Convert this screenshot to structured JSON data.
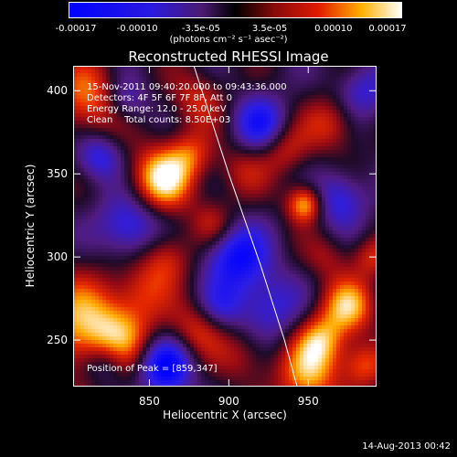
{
  "chart_data": {
    "type": "heatmap",
    "title": "Reconstructed RHESSI Image",
    "colorbar": {
      "min": -0.00017,
      "max": 0.00017,
      "tick_values": [
        -0.00017,
        -0.0001,
        -3.5e-05,
        3.5e-05,
        0.0001,
        0.00017
      ],
      "tick_labels": [
        "-0.00017",
        "-0.00010",
        "-3.5e-05",
        "3.5e-05",
        "0.00010",
        "0.00017"
      ],
      "unit_label": "(photons cm⁻² s⁻¹ asec⁻²)"
    },
    "xlabel": "Heliocentric X (arcsec)",
    "ylabel": "Heliocentric Y (arcsec)",
    "xlim": [
      802,
      993
    ],
    "ylim": [
      222,
      415
    ],
    "xticks": [
      850,
      900,
      950
    ],
    "yticks": [
      250,
      300,
      350,
      400
    ],
    "info_lines": [
      "15-Nov-2011 09:40:20.000 to 09:43:36.000",
      "Detectors: 4F 5F 6F 7F 8F, Att 0",
      "Energy Range: 12.0 - 25.0 keV",
      "Clean    Total counts: 8.50E+03"
    ],
    "peak_label": "Position of Peak = [859,347]",
    "peak": [
      859,
      347
    ],
    "limb_curve": [
      [
        878,
        415
      ],
      [
        900,
        350
      ],
      [
        920,
        295
      ],
      [
        935,
        250
      ],
      [
        943,
        222
      ]
    ],
    "blobs": [
      [
        858,
        347,
        14,
        1.0
      ],
      [
        812,
        395,
        16,
        0.7
      ],
      [
        808,
        258,
        22,
        0.75
      ],
      [
        832,
        250,
        16,
        0.55
      ],
      [
        880,
        256,
        12,
        0.5
      ],
      [
        838,
        318,
        14,
        -0.7
      ],
      [
        860,
        300,
        12,
        0.55
      ],
      [
        890,
        320,
        10,
        0.4
      ],
      [
        908,
        352,
        12,
        0.35
      ],
      [
        935,
        365,
        11,
        0.45
      ],
      [
        948,
        332,
        8,
        0.9
      ],
      [
        965,
        380,
        12,
        0.5
      ],
      [
        975,
        270,
        12,
        0.8
      ],
      [
        958,
        250,
        11,
        0.7
      ],
      [
        950,
        228,
        14,
        0.75
      ],
      [
        985,
        235,
        10,
        0.6
      ],
      [
        860,
        234,
        12,
        -1.0
      ],
      [
        823,
        236,
        10,
        -0.6
      ],
      [
        905,
        300,
        14,
        -0.85
      ],
      [
        920,
        380,
        12,
        -0.7
      ],
      [
        970,
        335,
        12,
        -0.6
      ],
      [
        925,
        270,
        14,
        -0.55
      ],
      [
        818,
        360,
        10,
        -0.6
      ],
      [
        880,
        395,
        12,
        0.45
      ],
      [
        835,
        395,
        10,
        -0.5
      ],
      [
        962,
        300,
        10,
        0.3
      ],
      [
        895,
        270,
        10,
        -0.4
      ],
      [
        845,
        280,
        12,
        0.35
      ],
      [
        990,
        300,
        9,
        0.45
      ],
      [
        985,
        400,
        12,
        -0.5
      ],
      [
        876,
        362,
        10,
        0.45
      ],
      [
        910,
        240,
        12,
        0.35
      ]
    ]
  },
  "timestamp": "14-Aug-2013 00:42"
}
